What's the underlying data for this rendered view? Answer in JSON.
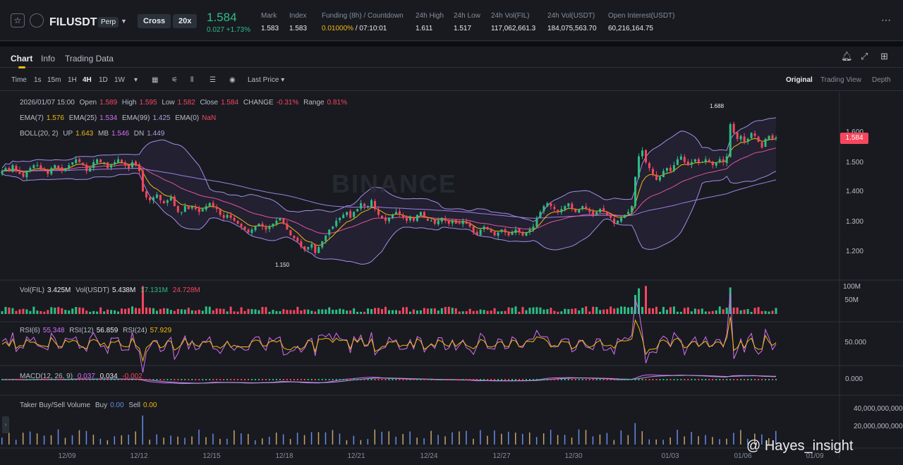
{
  "header": {
    "symbol": "FILUSDT",
    "contract_type": "Perp",
    "margin_mode": "Cross",
    "leverage": "20x",
    "last_price": "1.584",
    "change": "0.027 +1.73%",
    "stats": [
      {
        "label": "Mark",
        "value": "1.583"
      },
      {
        "label": "Index",
        "value": "1.583"
      },
      {
        "label": "Funding (8h) / Countdown",
        "value_rate": "0.01000%",
        "value_countdown": "/ 07:10:01"
      },
      {
        "label": "24h High",
        "value": "1.611"
      },
      {
        "label": "24h Low",
        "value": "1.517"
      },
      {
        "label": "24h Vol(FIL)",
        "value": "117,062,661.3"
      },
      {
        "label": "24h Vol(USDT)",
        "value": "184,075,563.70"
      },
      {
        "label": "Open Interest(USDT)",
        "value": "60,216,164.75"
      }
    ]
  },
  "tabs": [
    "Chart",
    "Info",
    "Trading Data"
  ],
  "toolbar": {
    "intervals": [
      "Time",
      "1s",
      "15m",
      "1H",
      "4H",
      "1D",
      "1W"
    ],
    "selected_interval": "4H",
    "price_type": "Last Price",
    "views": [
      "Original",
      "Trading View",
      "Depth"
    ],
    "selected_view": "Original"
  },
  "legend": {
    "ohlc": {
      "time": "2026/01/07 15:00",
      "open_label": "Open",
      "open": "1.589",
      "high_label": "High",
      "high": "1.595",
      "low_label": "Low",
      "low": "1.582",
      "close_label": "Close",
      "close": "1.584",
      "change_label": "CHANGE",
      "change": "-0.31%",
      "range_label": "Range",
      "range": "0.81%"
    },
    "ema": {
      "ema7_label": "EMA(7)",
      "ema7": "1.576",
      "ema25_label": "EMA(25)",
      "ema25": "1.534",
      "ema99_label": "EMA(99)",
      "ema99": "1.425",
      "ema0_label": "EMA(0)",
      "ema0": "NaN"
    },
    "boll": {
      "label": "BOLL(20, 2)",
      "up_label": "UP",
      "up": "1.643",
      "mb_label": "MB",
      "mb": "1.546",
      "dn_label": "DN",
      "dn": "1.449"
    },
    "vol": {
      "fil_label": "Vol(FIL)",
      "fil": "3.425M",
      "usdt_label": "Vol(USDT)",
      "usdt": "5.438M",
      "ma1": "17.131M",
      "ma2": "24.728M"
    },
    "rsi": {
      "rsi6_label": "RSI(6)",
      "rsi6": "55.348",
      "rsi12_label": "RSI(12)",
      "rsi12": "56.859",
      "rsi24_label": "RSI(24)",
      "rsi24": "57.929"
    },
    "macd": {
      "label": "MACD(12, 26, 9)",
      "v1": "0.037",
      "v2": "0.034",
      "v3": "-0.002"
    },
    "taker": {
      "label": "Taker Buy/Sell Volume",
      "buy_label": "Buy",
      "buy": "0.00",
      "sell_label": "Sell",
      "sell": "0.00"
    }
  },
  "price_axis": [
    "1.600",
    "1.500",
    "1.400",
    "1.300",
    "1.200"
  ],
  "current_price_tag": "1.584",
  "high_marker": "1.688",
  "low_marker": "1.150",
  "volume_axis": [
    "100M",
    "50M"
  ],
  "rsi_axis": [
    "50.000"
  ],
  "macd_axis": [
    "0.000"
  ],
  "taker_axis": [
    "40,000,000,000",
    "20,000,000,000"
  ],
  "x_axis": [
    "12/09",
    "12/12",
    "12/15",
    "12/18",
    "12/21",
    "12/24",
    "12/27",
    "12/30",
    "01/03",
    "01/06",
    "01/09"
  ],
  "watermark": "BINANCE",
  "credit": "@ Hayes_insight",
  "colors": {
    "up": "#2ebd85",
    "down": "#f6465d",
    "accent": "#f0b90b",
    "bg": "#181a20"
  },
  "chart_data": {
    "type": "candlestick",
    "interval": "4H",
    "x_range": [
      "12/09",
      "01/09"
    ],
    "ylim": [
      1.15,
      1.688
    ],
    "closes": [
      1.47,
      1.48,
      1.47,
      1.49,
      1.47,
      1.46,
      1.45,
      1.47,
      1.48,
      1.49,
      1.49,
      1.48,
      1.47,
      1.46,
      1.48,
      1.49,
      1.48,
      1.47,
      1.48,
      1.49,
      1.5,
      1.51,
      1.5,
      1.49,
      1.47,
      1.48,
      1.5,
      1.51,
      1.5,
      1.5,
      1.48,
      1.49,
      1.5,
      1.51,
      1.5,
      1.49,
      1.48,
      1.5,
      1.49,
      1.47,
      1.4,
      1.38,
      1.37,
      1.38,
      1.39,
      1.37,
      1.36,
      1.37,
      1.38,
      1.35,
      1.33,
      1.33,
      1.35,
      1.34,
      1.35,
      1.34,
      1.33,
      1.34,
      1.35,
      1.36,
      1.35,
      1.34,
      1.32,
      1.31,
      1.32,
      1.31,
      1.3,
      1.29,
      1.28,
      1.27,
      1.26,
      1.27,
      1.28,
      1.29,
      1.28,
      1.27,
      1.28,
      1.29,
      1.3,
      1.31,
      1.29,
      1.27,
      1.25,
      1.24,
      1.23,
      1.21,
      1.2,
      1.21,
      1.22,
      1.19,
      1.21,
      1.23,
      1.25,
      1.27,
      1.28,
      1.3,
      1.31,
      1.32,
      1.33,
      1.31,
      1.33,
      1.34,
      1.36,
      1.35,
      1.35,
      1.37,
      1.34,
      1.32,
      1.31,
      1.3,
      1.31,
      1.32,
      1.33,
      1.32,
      1.31,
      1.3,
      1.31,
      1.3,
      1.32,
      1.33,
      1.31,
      1.3,
      1.3,
      1.29,
      1.3,
      1.31,
      1.3,
      1.29,
      1.3,
      1.29,
      1.29,
      1.3,
      1.29,
      1.28,
      1.26,
      1.25,
      1.27,
      1.28,
      1.27,
      1.26,
      1.25,
      1.26,
      1.27,
      1.26,
      1.25,
      1.26,
      1.27,
      1.26,
      1.25,
      1.26,
      1.27,
      1.28,
      1.31,
      1.33,
      1.35,
      1.36,
      1.35,
      1.34,
      1.33,
      1.34,
      1.35,
      1.36,
      1.34,
      1.33,
      1.34,
      1.35,
      1.34,
      1.33,
      1.32,
      1.33,
      1.34,
      1.33,
      1.32,
      1.31,
      1.29,
      1.3,
      1.31,
      1.32,
      1.33,
      1.35,
      1.45,
      1.52,
      1.54,
      1.5,
      1.48,
      1.46,
      1.44,
      1.45,
      1.47,
      1.48,
      1.47,
      1.49,
      1.51,
      1.52,
      1.5,
      1.49,
      1.5,
      1.51,
      1.5,
      1.5,
      1.51,
      1.5,
      1.49,
      1.5,
      1.51,
      1.5,
      1.52,
      1.63,
      1.6,
      1.58,
      1.59,
      1.57,
      1.58,
      1.6,
      1.59,
      1.57,
      1.55,
      1.58,
      1.59,
      1.58,
      1.584
    ]
  }
}
